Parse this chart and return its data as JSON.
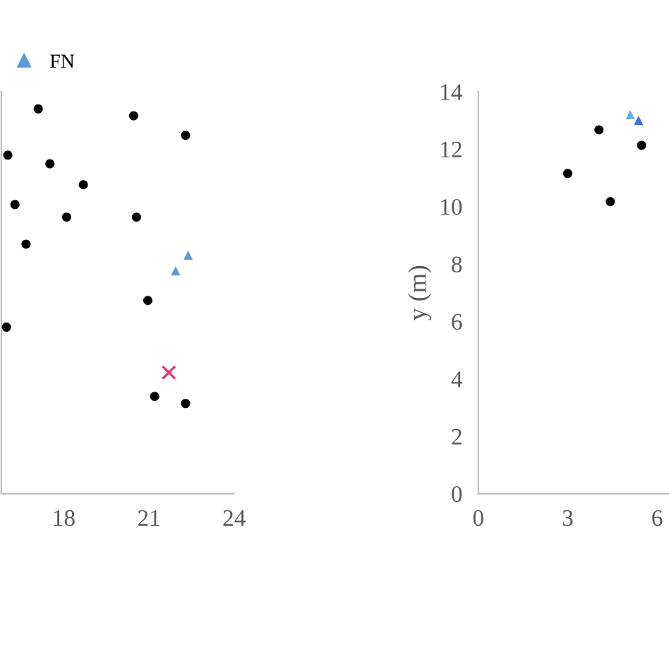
{
  "chart_data": [
    {
      "type": "scatter",
      "xlim": [
        15.8,
        24
      ],
      "xticks": [
        18,
        21,
        24
      ],
      "ylim": [
        0,
        14
      ],
      "tick_labels": "x",
      "legend": "top left",
      "grid": false,
      "series": [
        {
          "color": "#000000",
          "marker": "circle",
          "x": [
            17.1,
            20.46,
            22.29,
            16.03,
            17.51,
            18.69,
            16.28,
            18.1,
            20.56,
            16.67,
            15.98,
            20.96,
            21.2,
            22.29
          ],
          "values": [
            13.4,
            13.16,
            12.48,
            11.79,
            11.49,
            10.76,
            10.07,
            9.63,
            9.63,
            8.69,
            5.8,
            6.73,
            3.39,
            3.14
          ]
        },
        {
          "name": "FN",
          "color": "#5b9bd5",
          "marker": "triangle",
          "x": [
            22.38,
            21.94
          ],
          "values": [
            8.3,
            7.76
          ]
        },
        {
          "color": "#e8336d",
          "marker": "cross",
          "x": [
            21.7
          ],
          "values": [
            4.22
          ]
        }
      ]
    },
    {
      "type": "scatter",
      "xlim": [
        0,
        6.4
      ],
      "xticks": [
        0,
        3,
        6
      ],
      "ylim": [
        0,
        14
      ],
      "yticks": [
        0,
        2,
        4,
        6,
        8,
        10,
        12,
        14
      ],
      "ylabel": "y (m)",
      "grid": false,
      "series": [
        {
          "color": "#000000",
          "marker": "circle",
          "x": [
            3.0,
            4.05,
            4.43,
            5.48
          ],
          "values": [
            11.15,
            12.67,
            10.17,
            12.13
          ]
        },
        {
          "colors": [
            "#6aaee8",
            "#3a6fd8"
          ],
          "marker": "triangle",
          "x": [
            5.1,
            5.38
          ],
          "values": [
            13.2,
            13.0
          ]
        }
      ]
    }
  ]
}
